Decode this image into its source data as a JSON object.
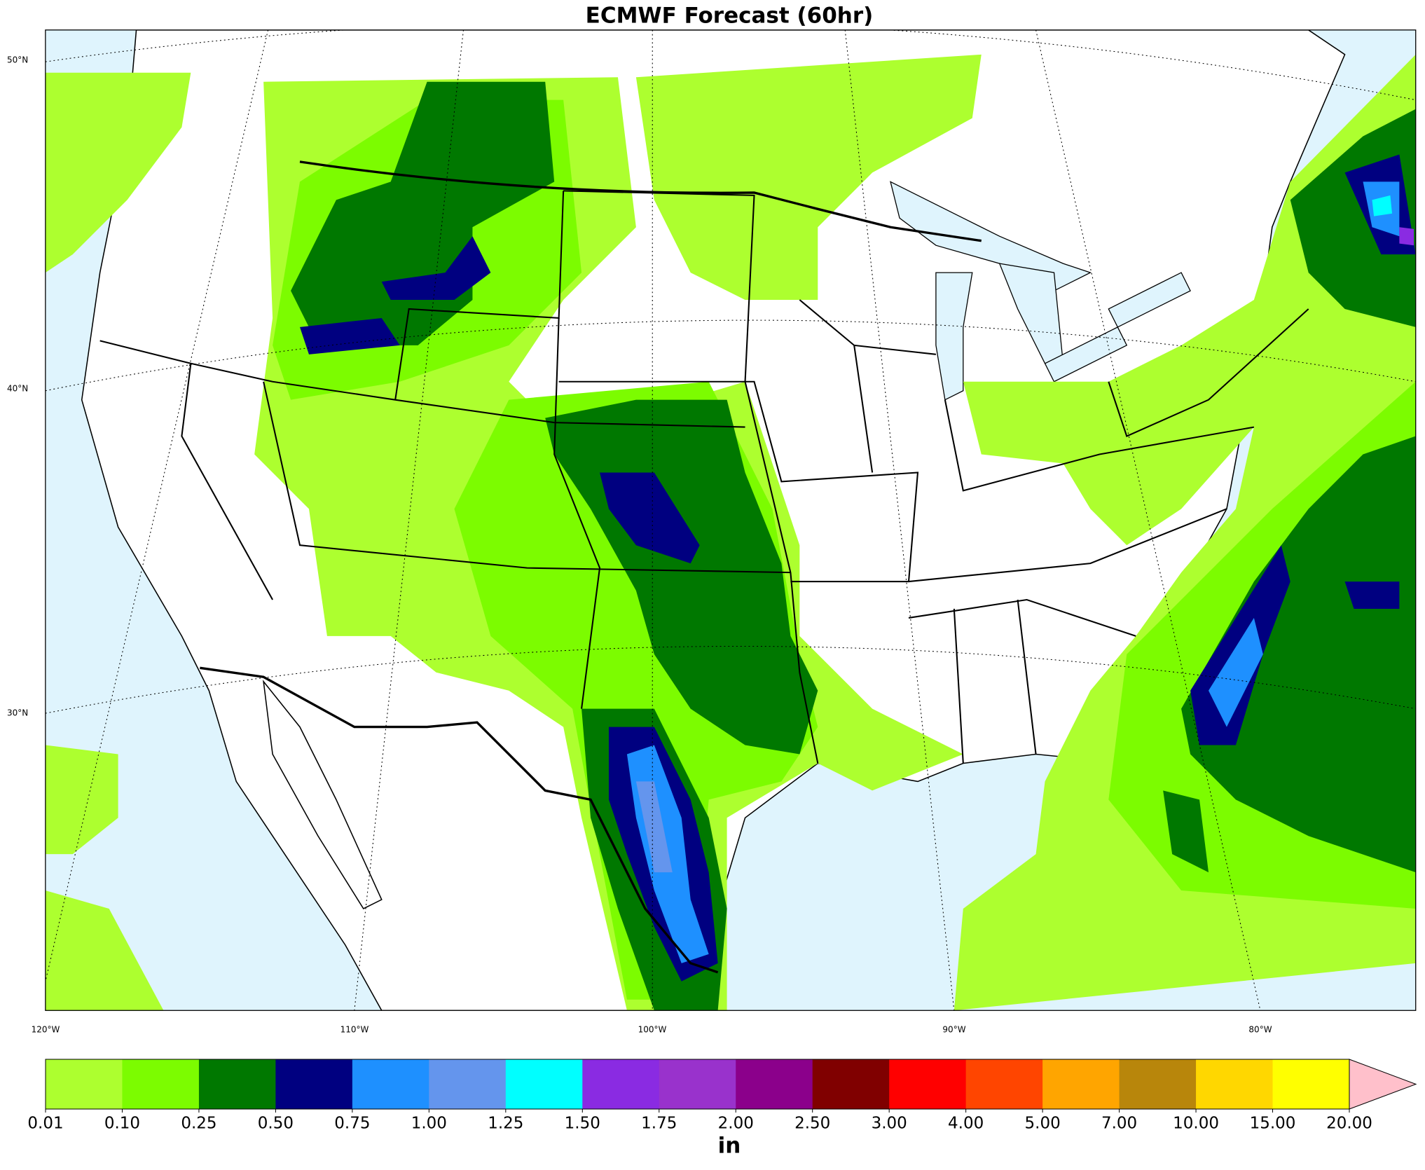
{
  "title": "ECMWF Forecast (60hr)",
  "map": {
    "lat_labels": [
      "50°N",
      "40°N",
      "30°N"
    ],
    "lon_labels": [
      "120°W",
      "110°W",
      "100°W",
      "90°W",
      "80°W"
    ]
  },
  "colorbar": {
    "label": "in",
    "ticks": [
      {
        "value": 0.01,
        "label": "0.01"
      },
      {
        "value": 0.1,
        "label": "0.10"
      },
      {
        "value": 0.25,
        "label": "0.25"
      },
      {
        "value": 0.5,
        "label": "0.50"
      },
      {
        "value": 0.75,
        "label": "0.75"
      },
      {
        "value": 1,
        "label": "1.00"
      },
      {
        "value": 1.25,
        "label": "1.25"
      },
      {
        "value": 1.5,
        "label": "1.50"
      },
      {
        "value": 1.75,
        "label": "1.75"
      },
      {
        "value": 2,
        "label": "2.00"
      },
      {
        "value": 2.5,
        "label": "2.50"
      },
      {
        "value": 3,
        "label": "3.00"
      },
      {
        "value": 4,
        "label": "4.00"
      },
      {
        "value": 5,
        "label": "5.00"
      },
      {
        "value": 7,
        "label": "7.00"
      },
      {
        "value": 10,
        "label": "10.00"
      },
      {
        "value": 15,
        "label": "15.00"
      },
      {
        "value": 20,
        "label": "20.00"
      }
    ],
    "colors": [
      "#adff2f",
      "#7cfc00",
      "#007800",
      "#000080",
      "#1e90ff",
      "#6495ed",
      "#00ffff",
      "#8a2be2",
      "#9932cc",
      "#8b008b",
      "#800000",
      "#ff0000",
      "#ff4500",
      "#ffa500",
      "#b8860b",
      "#ffd700",
      "#ffff00"
    ],
    "extend_color": "#ffc0cb"
  }
}
